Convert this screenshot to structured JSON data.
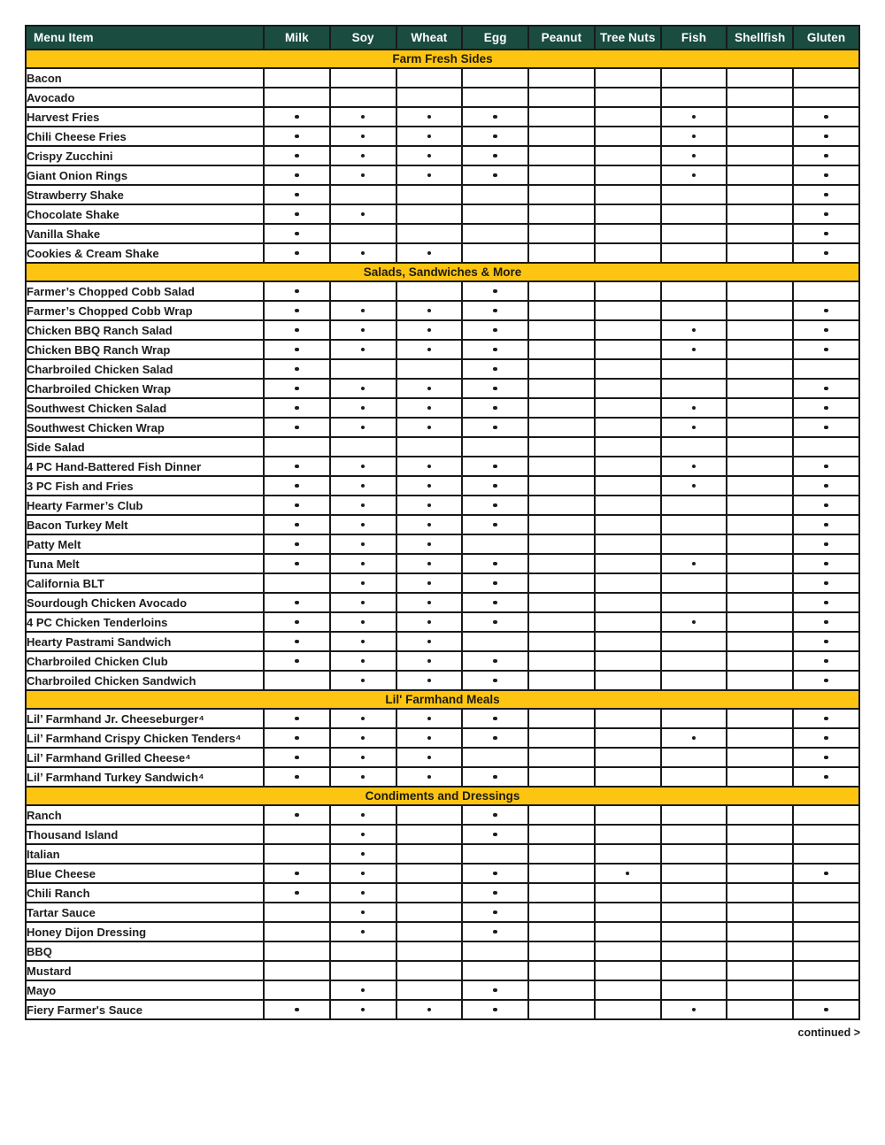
{
  "colors": {
    "header_bg": "#1a4c40",
    "header_text": "#ffffff",
    "section_bg": "#fdc511",
    "section_text": "#1d1b10",
    "border": "#1a1a1a",
    "text": "#1d1d1b",
    "page_bg": "#ffffff"
  },
  "footer": {
    "continued_label": "continued >"
  },
  "table": {
    "columns": [
      "Menu Item",
      "Milk",
      "Soy",
      "Wheat",
      "Egg",
      "Peanut",
      "Tree Nuts",
      "Fish",
      "Shellfish",
      "Gluten"
    ],
    "allergen_columns": [
      "Milk",
      "Soy",
      "Wheat",
      "Egg",
      "Peanut",
      "Tree Nuts",
      "Fish",
      "Shellfish",
      "Gluten"
    ],
    "dot_symbol": "•",
    "sections": [
      {
        "title": "Farm Fresh Sides",
        "rows": [
          {
            "item": "Bacon",
            "allergens": []
          },
          {
            "item": "Avocado",
            "allergens": []
          },
          {
            "item": "Harvest Fries",
            "allergens": [
              "Milk",
              "Soy",
              "Wheat",
              "Egg",
              "Fish",
              "Gluten"
            ]
          },
          {
            "item": "Chili Cheese Fries",
            "allergens": [
              "Milk",
              "Soy",
              "Wheat",
              "Egg",
              "Fish",
              "Gluten"
            ]
          },
          {
            "item": "Crispy Zucchini",
            "allergens": [
              "Milk",
              "Soy",
              "Wheat",
              "Egg",
              "Fish",
              "Gluten"
            ]
          },
          {
            "item": "Giant Onion Rings",
            "allergens": [
              "Milk",
              "Soy",
              "Wheat",
              "Egg",
              "Fish",
              "Gluten"
            ]
          },
          {
            "item": "Strawberry Shake",
            "allergens": [
              "Milk",
              "Gluten"
            ]
          },
          {
            "item": "Chocolate Shake",
            "allergens": [
              "Milk",
              "Soy",
              "Gluten"
            ]
          },
          {
            "item": "Vanilla Shake",
            "allergens": [
              "Milk",
              "Gluten"
            ]
          },
          {
            "item": "Cookies & Cream Shake",
            "allergens": [
              "Milk",
              "Soy",
              "Wheat",
              "Gluten"
            ]
          }
        ]
      },
      {
        "title": "Salads, Sandwiches & More",
        "rows": [
          {
            "item": "Farmer’s Chopped Cobb Salad",
            "allergens": [
              "Milk",
              "Egg"
            ]
          },
          {
            "item": "Farmer’s Chopped Cobb Wrap",
            "allergens": [
              "Milk",
              "Soy",
              "Wheat",
              "Egg",
              "Gluten"
            ]
          },
          {
            "item": "Chicken BBQ Ranch Salad",
            "allergens": [
              "Milk",
              "Soy",
              "Wheat",
              "Egg",
              "Fish",
              "Gluten"
            ]
          },
          {
            "item": "Chicken BBQ Ranch Wrap",
            "allergens": [
              "Milk",
              "Soy",
              "Wheat",
              "Egg",
              "Fish",
              "Gluten"
            ]
          },
          {
            "item": "Charbroiled Chicken Salad",
            "allergens": [
              "Milk",
              "Egg"
            ]
          },
          {
            "item": "Charbroiled Chicken Wrap",
            "allergens": [
              "Milk",
              "Soy",
              "Wheat",
              "Egg",
              "Gluten"
            ]
          },
          {
            "item": "Southwest Chicken Salad",
            "allergens": [
              "Milk",
              "Soy",
              "Wheat",
              "Egg",
              "Fish",
              "Gluten"
            ]
          },
          {
            "item": "Southwest Chicken Wrap",
            "allergens": [
              "Milk",
              "Soy",
              "Wheat",
              "Egg",
              "Fish",
              "Gluten"
            ]
          },
          {
            "item": "Side Salad",
            "allergens": []
          },
          {
            "item": "4 PC Hand-Battered Fish Dinner",
            "allergens": [
              "Milk",
              "Soy",
              "Wheat",
              "Egg",
              "Fish",
              "Gluten"
            ]
          },
          {
            "item": "3 PC Fish and Fries",
            "allergens": [
              "Milk",
              "Soy",
              "Wheat",
              "Egg",
              "Fish",
              "Gluten"
            ]
          },
          {
            "item": "Hearty Farmer’s Club",
            "allergens": [
              "Milk",
              "Soy",
              "Wheat",
              "Egg",
              "Gluten"
            ]
          },
          {
            "item": "Bacon Turkey Melt",
            "allergens": [
              "Milk",
              "Soy",
              "Wheat",
              "Egg",
              "Gluten"
            ]
          },
          {
            "item": "Patty Melt",
            "allergens": [
              "Milk",
              "Soy",
              "Wheat",
              "Gluten"
            ]
          },
          {
            "item": "Tuna Melt",
            "allergens": [
              "Milk",
              "Soy",
              "Wheat",
              "Egg",
              "Fish",
              "Gluten"
            ]
          },
          {
            "item": "California BLT",
            "allergens": [
              "Soy",
              "Wheat",
              "Egg",
              "Gluten"
            ]
          },
          {
            "item": "Sourdough Chicken Avocado",
            "allergens": [
              "Milk",
              "Soy",
              "Wheat",
              "Egg",
              "Gluten"
            ]
          },
          {
            "item": "4 PC Chicken Tenderloins",
            "allergens": [
              "Milk",
              "Soy",
              "Wheat",
              "Egg",
              "Fish",
              "Gluten"
            ]
          },
          {
            "item": "Hearty Pastrami Sandwich",
            "allergens": [
              "Milk",
              "Soy",
              "Wheat",
              "Gluten"
            ]
          },
          {
            "item": "Charbroiled Chicken Club",
            "allergens": [
              "Milk",
              "Soy",
              "Wheat",
              "Egg",
              "Gluten"
            ]
          },
          {
            "item": "Charbroiled Chicken Sandwich",
            "allergens": [
              "Soy",
              "Wheat",
              "Egg",
              "Gluten"
            ]
          }
        ]
      },
      {
        "title": "Lil' Farmhand Meals",
        "rows": [
          {
            "item": "Lil’ Farmhand Jr. Cheeseburger⁴",
            "allergens": [
              "Milk",
              "Soy",
              "Wheat",
              "Egg",
              "Gluten"
            ]
          },
          {
            "item": "Lil’ Farmhand Crispy Chicken Tenders⁴",
            "allergens": [
              "Milk",
              "Soy",
              "Wheat",
              "Egg",
              "Fish",
              "Gluten"
            ]
          },
          {
            "item": "Lil’ Farmhand Grilled Cheese⁴",
            "allergens": [
              "Milk",
              "Soy",
              "Wheat",
              "Gluten"
            ]
          },
          {
            "item": "Lil’ Farmhand Turkey Sandwich⁴",
            "allergens": [
              "Milk",
              "Soy",
              "Wheat",
              "Egg",
              "Gluten"
            ]
          }
        ]
      },
      {
        "title": "Condiments and Dressings",
        "rows": [
          {
            "item": "Ranch",
            "allergens": [
              "Milk",
              "Soy",
              "Egg"
            ]
          },
          {
            "item": "Thousand Island",
            "allergens": [
              "Soy",
              "Egg"
            ]
          },
          {
            "item": "Italian",
            "allergens": [
              "Soy"
            ]
          },
          {
            "item": "Blue Cheese",
            "allergens": [
              "Milk",
              "Soy",
              "Egg",
              "Tree Nuts",
              "Gluten"
            ]
          },
          {
            "item": "Chili Ranch",
            "allergens": [
              "Milk",
              "Soy",
              "Egg"
            ]
          },
          {
            "item": "Tartar Sauce",
            "allergens": [
              "Soy",
              "Egg"
            ]
          },
          {
            "item": "Honey Dijon Dressing",
            "allergens": [
              "Soy",
              "Egg"
            ]
          },
          {
            "item": "BBQ",
            "allergens": []
          },
          {
            "item": "Mustard",
            "allergens": []
          },
          {
            "item": "Mayo",
            "allergens": [
              "Soy",
              "Egg"
            ]
          },
          {
            "item": "Fiery Farmer's Sauce",
            "allergens": [
              "Milk",
              "Soy",
              "Wheat",
              "Egg",
              "Fish",
              "Gluten"
            ]
          }
        ]
      }
    ]
  }
}
